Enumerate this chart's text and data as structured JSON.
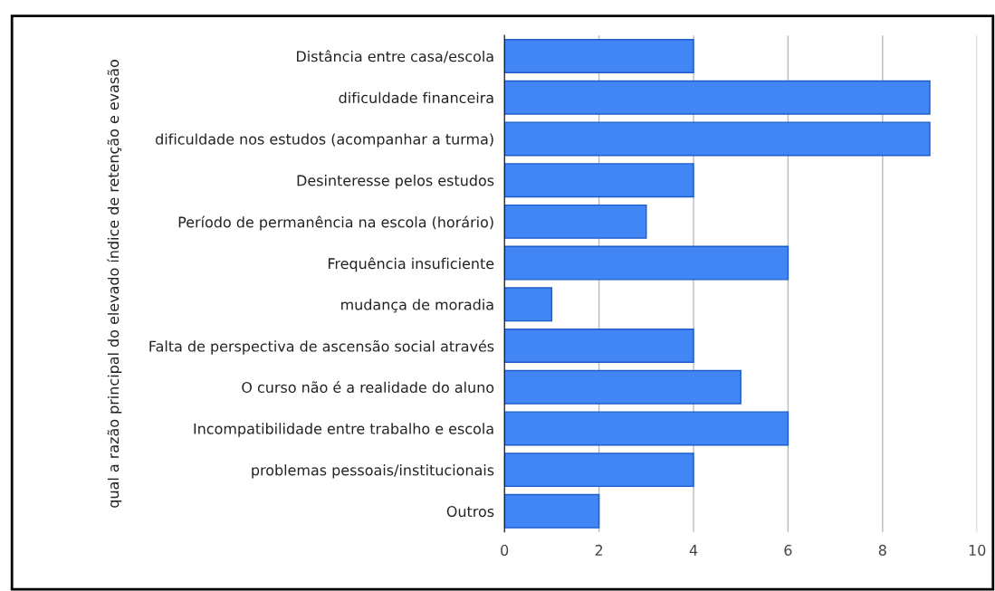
{
  "chart_data": {
    "type": "bar",
    "orientation": "horizontal",
    "ylabel": "qual a razão principal do elevado índice de retenção e evasão",
    "categories": [
      "Distância entre casa/escola",
      "dificuldade financeira",
      "dificuldade nos estudos (acompanhar a turma)",
      "Desinteresse pelos estudos",
      "Período de permanência na escola (horário)",
      "Frequência insuficiente",
      "mudança de moradia",
      "Falta de perspectiva de ascensão social através",
      "O curso não é a realidade do aluno",
      "Incompatibilidade entre trabalho e escola",
      "problemas pessoais/institucionais",
      "Outros"
    ],
    "values": [
      4,
      9,
      9,
      4,
      3,
      6,
      1,
      4,
      5,
      6,
      4,
      2
    ],
    "color": "#4285f4",
    "xlim": [
      0,
      10
    ],
    "xticks": [
      0,
      2,
      4,
      6,
      8,
      10
    ],
    "grid": "x",
    "legend": false
  }
}
